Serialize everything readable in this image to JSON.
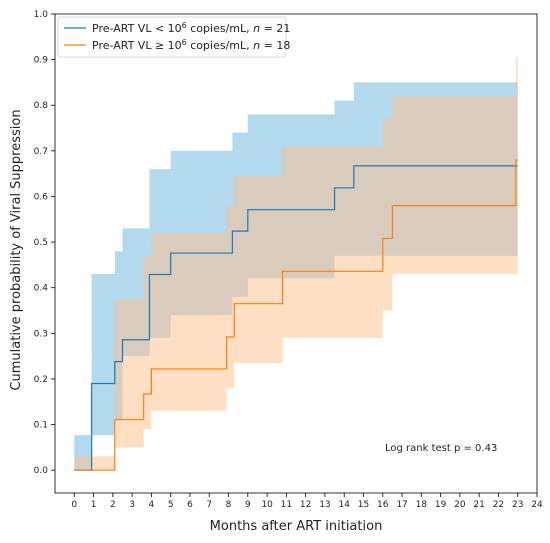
{
  "chart_data": {
    "type": "line",
    "subtype": "kaplan-meier-step",
    "xlabel": "Months after ART initiation",
    "ylabel": "Cumulative probability of Viral Suppression",
    "xlim": [
      -1,
      24
    ],
    "ylim": [
      -0.05,
      1.0
    ],
    "x_ticks": [
      0,
      1,
      2,
      3,
      4,
      5,
      6,
      7,
      8,
      9,
      10,
      11,
      12,
      13,
      14,
      15,
      16,
      17,
      18,
      19,
      20,
      21,
      22,
      23,
      24
    ],
    "y_ticks": [
      0.0,
      0.1,
      0.2,
      0.3,
      0.4,
      0.5,
      0.6,
      0.7,
      0.8,
      0.9,
      1.0
    ],
    "grid": false,
    "legend_placement": "top-left",
    "legend": [
      {
        "prefix": "Pre-ART VL < 10",
        "sup": "6",
        "mid": " copies/mL, ",
        "n_label": "n",
        "suffix": " = 21"
      },
      {
        "prefix": "Pre-ART VL ≥ 10",
        "sup": "6",
        "mid": " copies/mL, ",
        "n_label": "n",
        "suffix": " = 18"
      }
    ],
    "annotation": "Log rank test p = 0.43",
    "series": [
      {
        "name": "Pre-ART VL < 10^6 copies/mL, n = 21",
        "color": "#1f77b4",
        "band_color": "#7fbfe3",
        "step_x": [
          0,
          0.9,
          2.1,
          2.5,
          3.9,
          5.0,
          8.2,
          9.0,
          13.5,
          14.5,
          23.0
        ],
        "step_y": [
          0.0,
          0.19,
          0.238,
          0.286,
          0.429,
          0.476,
          0.524,
          0.571,
          0.619,
          0.667,
          0.667
        ],
        "lower": [
          0.0,
          0.077,
          0.077,
          0.11,
          0.25,
          0.29,
          0.34,
          0.38,
          0.42,
          0.47,
          0.47
        ],
        "upper": [
          0.0,
          0.43,
          0.48,
          0.53,
          0.66,
          0.7,
          0.74,
          0.78,
          0.81,
          0.85,
          0.85
        ]
      },
      {
        "name": "Pre-ART VL ≥ 10^6 copies/mL, n = 18",
        "color": "#ff7f0e",
        "band_color": "#ffc08a",
        "step_x": [
          0,
          2.1,
          3.6,
          4.0,
          7.9,
          8.3,
          10.8,
          16.0,
          16.5,
          22.9,
          23.0
        ],
        "step_y": [
          0.0,
          0.111,
          0.167,
          0.222,
          0.292,
          0.365,
          0.436,
          0.508,
          0.58,
          0.68,
          0.68
        ],
        "lower": [
          0.0,
          0.03,
          0.05,
          0.09,
          0.13,
          0.18,
          0.235,
          0.29,
          0.35,
          0.43,
          0.43
        ],
        "upper": [
          0.0,
          0.375,
          0.47,
          0.52,
          0.58,
          0.645,
          0.71,
          0.77,
          0.82,
          0.905,
          0.905
        ]
      }
    ]
  }
}
